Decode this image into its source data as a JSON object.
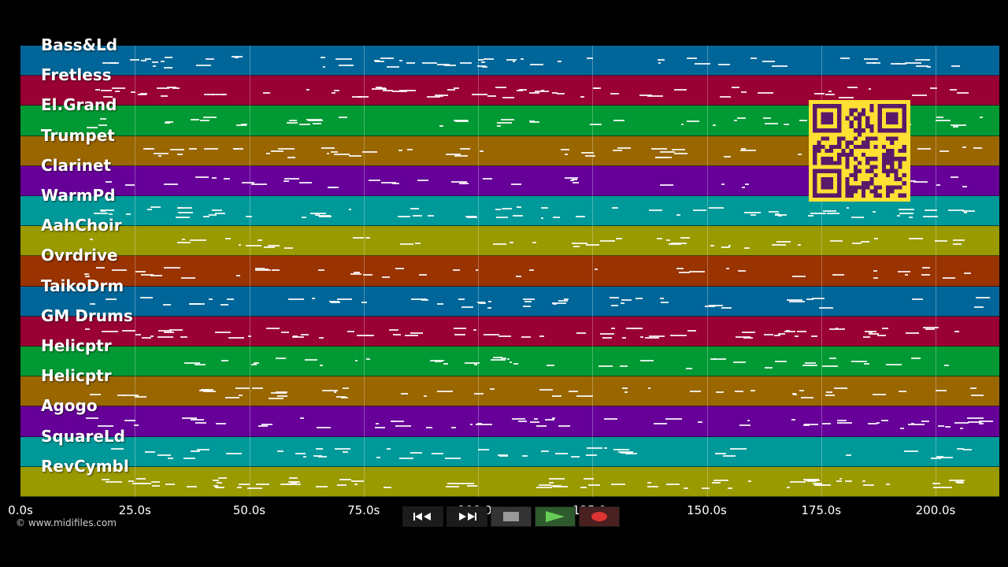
{
  "tracks": [
    {
      "name": "Bass&Ld",
      "color": "#006699"
    },
    {
      "name": "Fretless",
      "color": "#990033"
    },
    {
      "name": "El.Grand",
      "color": "#009933"
    },
    {
      "name": "Trumpet",
      "color": "#996600"
    },
    {
      "name": "Clarinet",
      "color": "#660099"
    },
    {
      "name": "WarmPd",
      "color": "#009999"
    },
    {
      "name": "AahChoir",
      "color": "#999900"
    },
    {
      "name": "Ovrdrive",
      "color": "#993300"
    },
    {
      "name": "TaikoDrm",
      "color": "#006699"
    },
    {
      "name": "GM Drums",
      "color": "#990033"
    },
    {
      "name": "Helicptr",
      "color": "#009933"
    },
    {
      "name": "Helicptr",
      "color": "#996600"
    },
    {
      "name": "Agogo",
      "color": "#660099"
    },
    {
      "name": "SquareLd",
      "color": "#009999"
    },
    {
      "name": "RevCymbl",
      "color": "#999900"
    }
  ],
  "timeline": {
    "ticks": [
      "0.0s",
      "25.0s",
      "50.0s",
      "75.0s",
      "100.0s",
      "125.0s",
      "150.0s",
      "175.0s",
      "200.0s"
    ],
    "tick_seconds": [
      0,
      25,
      50,
      75,
      100,
      125,
      150,
      175,
      200
    ],
    "max_seconds": 214
  },
  "transport": {
    "rewind_icon": "rewind-icon",
    "fastforward_icon": "fast-forward-icon",
    "stop_icon": "stop-icon",
    "play_icon": "play-icon",
    "record_icon": "record-icon"
  },
  "copyright": "© www.midifiles.com",
  "qr_code": "qr-code-icon"
}
